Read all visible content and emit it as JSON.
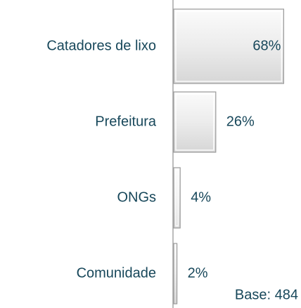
{
  "chart_data": {
    "type": "bar",
    "orientation": "horizontal",
    "categories": [
      "Catadores de lixo",
      "Prefeitura",
      "ONGs",
      "Comunidade"
    ],
    "values": [
      68,
      26,
      4,
      2
    ],
    "value_labels": [
      "68%",
      "26%",
      "4%",
      "2%"
    ],
    "color": "#e6e6e6",
    "annotation": "Base: 484"
  }
}
